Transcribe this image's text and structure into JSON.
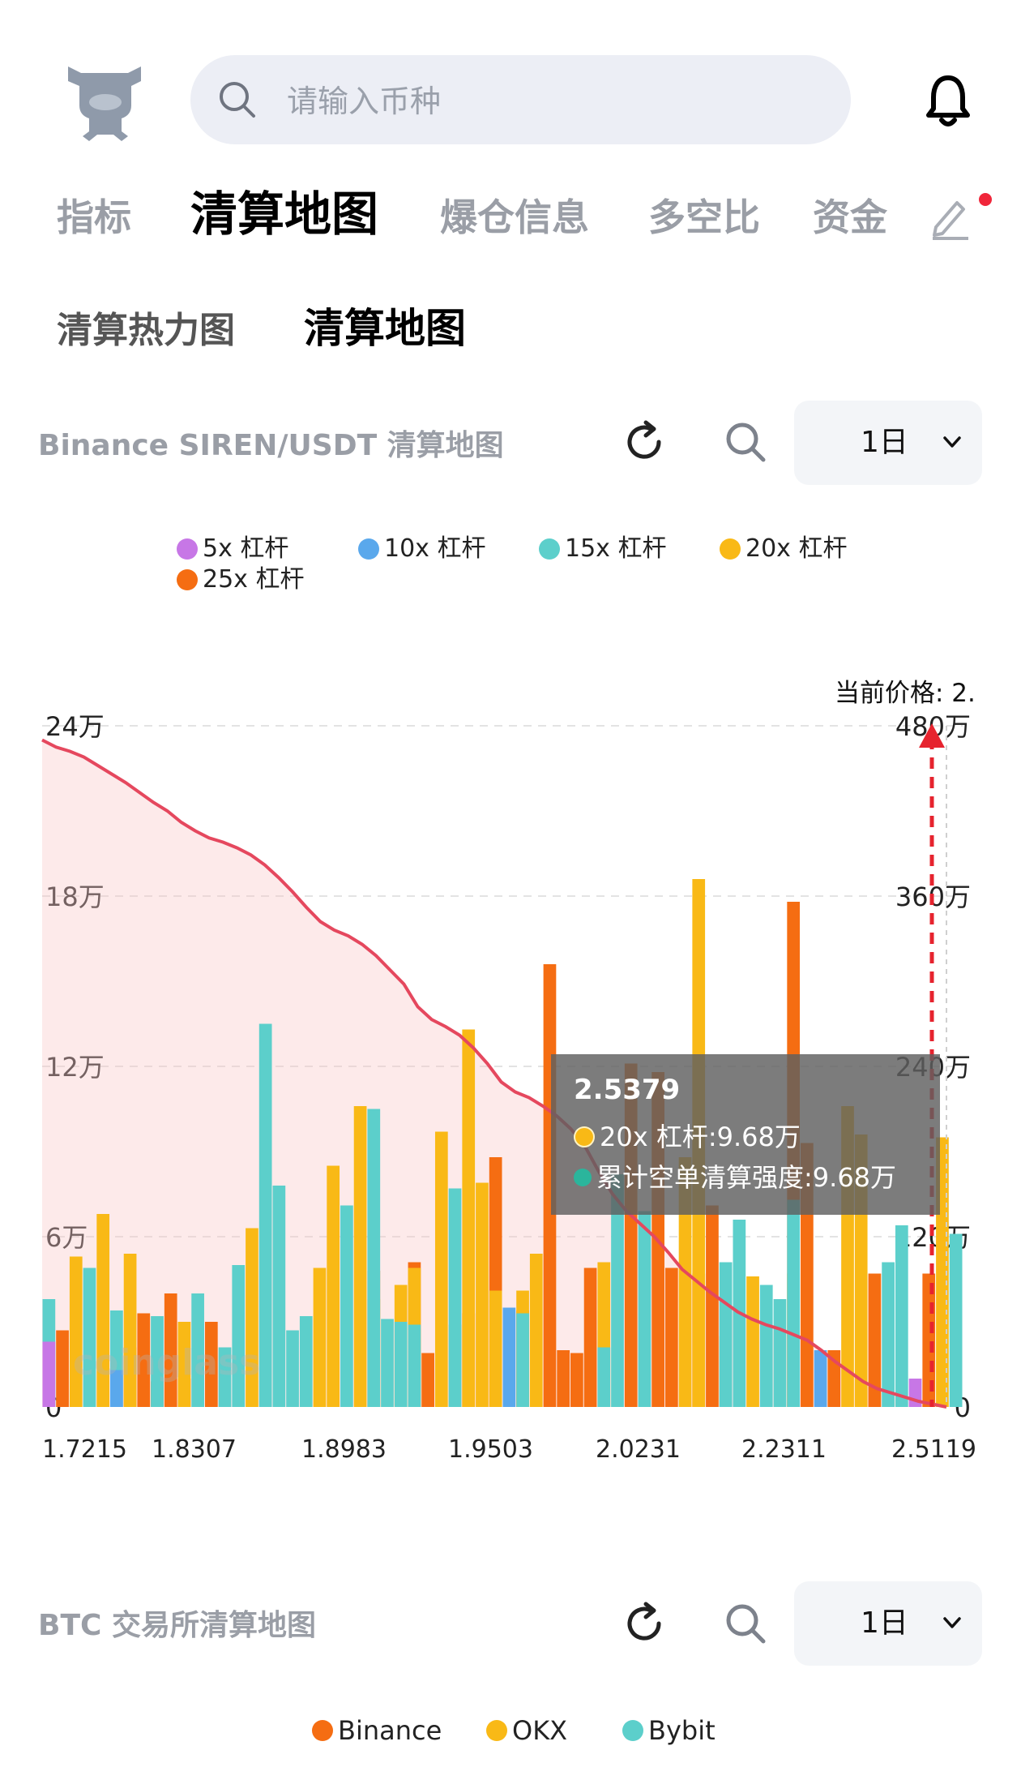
{
  "header": {
    "search_placeholder": "请输入币种"
  },
  "main_tabs": [
    {
      "label": "指标",
      "active": false
    },
    {
      "label": "清算地图",
      "active": true
    },
    {
      "label": "爆仓信息",
      "active": false
    },
    {
      "label": "多空比",
      "active": false
    },
    {
      "label": "资金",
      "active": false
    }
  ],
  "sub_tabs": [
    {
      "label": "清算热力图",
      "active": false
    },
    {
      "label": "清算地图",
      "active": true
    }
  ],
  "section1": {
    "title": "Binance SIREN/USDT 清算地图",
    "period": "1日"
  },
  "section2": {
    "title": "BTC 交易所清算地图",
    "period": "1日",
    "legend": [
      {
        "label": "Binance",
        "color": "#f56d12"
      },
      {
        "label": "OKX",
        "color": "#f9b916"
      },
      {
        "label": "Bybit",
        "color": "#5ccfcb"
      }
    ]
  },
  "watermark": "coinglass",
  "chart_data": {
    "type": "bar",
    "legend": [
      {
        "label": "5x 杠杆",
        "color": "#c777e6"
      },
      {
        "label": "10x 杠杆",
        "color": "#5aa8ec"
      },
      {
        "label": "15x 杠杆",
        "color": "#5ccfcb"
      },
      {
        "label": "20x 杠杆",
        "color": "#f9b916"
      },
      {
        "label": "25x 杠杆",
        "color": "#f56d12"
      }
    ],
    "x_ticks": [
      "1.7215",
      "1.8307",
      "1.8983",
      "1.9503",
      "2.0231",
      "2.2311",
      "2.5119"
    ],
    "y_left_ticks": [
      "0",
      "6万",
      "12万",
      "18万",
      "24万"
    ],
    "y_right_ticks": [
      "0",
      "120万",
      "240万",
      "360万",
      "480万"
    ],
    "y_left_max": 240000,
    "y_right_max": 4800000,
    "current_price_label": "当前价格: 2.",
    "bars_wan": [
      [
        2.3,
        0,
        3.8,
        0,
        0
      ],
      [
        0,
        0,
        0,
        0,
        2.7
      ],
      [
        0,
        0,
        0,
        5.3,
        0
      ],
      [
        0,
        0,
        4.9,
        0,
        0
      ],
      [
        0,
        0,
        0,
        6.8,
        0
      ],
      [
        0,
        1.3,
        3.4,
        0,
        0
      ],
      [
        0,
        0,
        0,
        5.4,
        2.1
      ],
      [
        0,
        0,
        0,
        0,
        3.3
      ],
      [
        0,
        0,
        3.2,
        0,
        0.9
      ],
      [
        0,
        0,
        0,
        0,
        4.0
      ],
      [
        0,
        0,
        0,
        3.0,
        1.0
      ],
      [
        0,
        0,
        4.0,
        0,
        0
      ],
      [
        0,
        0,
        0,
        0,
        3.0
      ],
      [
        0,
        0,
        2.1,
        0,
        0
      ],
      [
        0,
        0,
        5.0,
        0,
        0
      ],
      [
        0,
        0,
        0,
        6.3,
        0
      ],
      [
        0,
        0,
        13.5,
        0,
        0
      ],
      [
        0,
        0,
        7.8,
        0,
        0
      ],
      [
        0,
        0,
        2.7,
        0,
        0
      ],
      [
        0,
        0,
        3.2,
        0,
        0
      ],
      [
        0,
        0,
        0,
        4.9,
        0
      ],
      [
        0,
        0,
        0,
        8.5,
        0
      ],
      [
        0,
        0,
        7.1,
        0,
        0
      ],
      [
        0,
        0,
        0,
        10.6,
        0
      ],
      [
        0,
        0,
        10.5,
        3.8,
        4.8
      ],
      [
        0,
        0,
        3.1,
        0,
        0
      ],
      [
        0,
        0,
        3.0,
        4.3,
        0
      ],
      [
        0,
        0,
        2.9,
        4.9,
        5.1
      ],
      [
        0,
        0,
        0,
        0,
        1.9
      ],
      [
        0,
        0,
        0,
        9.7,
        0
      ],
      [
        0,
        0,
        7.7,
        2.9,
        0
      ],
      [
        0,
        0,
        0,
        13.3,
        3.3
      ],
      [
        0,
        0,
        0,
        7.9,
        0
      ],
      [
        0,
        0,
        0,
        4.1,
        8.8
      ],
      [
        0,
        3.5,
        0,
        0,
        0
      ],
      [
        0,
        0,
        3.3,
        4.1,
        3.4
      ],
      [
        0,
        0,
        0,
        5.4,
        0
      ],
      [
        0,
        0,
        0,
        0,
        15.6
      ],
      [
        0,
        0,
        0,
        0,
        2.0
      ],
      [
        0,
        0,
        0,
        0,
        1.9
      ],
      [
        0,
        0,
        0,
        0,
        4.9
      ],
      [
        0,
        0,
        2.1,
        5.1,
        0
      ],
      [
        0,
        0,
        8.2,
        0,
        0
      ],
      [
        0,
        0,
        0,
        0,
        12.1
      ],
      [
        0,
        0,
        6.9,
        0,
        0
      ],
      [
        0,
        0,
        0,
        0,
        11.8
      ],
      [
        0,
        0,
        0,
        0,
        4.9
      ],
      [
        0,
        0,
        0,
        8.8,
        0
      ],
      [
        0,
        0,
        0,
        18.6,
        4.7
      ],
      [
        0,
        0,
        0,
        0,
        7.1
      ],
      [
        0,
        0,
        5.1,
        2.5,
        0
      ],
      [
        0,
        0,
        6.6,
        0,
        0
      ],
      [
        0,
        0,
        0,
        4.6,
        0
      ],
      [
        0,
        0,
        4.3,
        0,
        0
      ],
      [
        0,
        0,
        3.8,
        0,
        0
      ],
      [
        0,
        0,
        7.3,
        4.7,
        17.8
      ],
      [
        0,
        0,
        0,
        0,
        9.3
      ],
      [
        0,
        2.0,
        0,
        0,
        0
      ],
      [
        0,
        0,
        0,
        0,
        2.0
      ],
      [
        0,
        0,
        0,
        10.6,
        0
      ],
      [
        0,
        0,
        0,
        9.6,
        0
      ],
      [
        0,
        0,
        0,
        0,
        4.7
      ],
      [
        0,
        0,
        5.1,
        0,
        0
      ],
      [
        0,
        0,
        6.4,
        0,
        0
      ],
      [
        1.0,
        0,
        0,
        0,
        0
      ],
      [
        0,
        0,
        0,
        0,
        4.7
      ],
      [
        0,
        0,
        0,
        9.5,
        0
      ],
      [
        0,
        0,
        6.1,
        0,
        0
      ]
    ],
    "cumulative_curve_wan": [
      470,
      465,
      462,
      458,
      452,
      446,
      440,
      433,
      426,
      420,
      412,
      406,
      401,
      398,
      394,
      389,
      382,
      373,
      363,
      352,
      342,
      336,
      332,
      326,
      318,
      308,
      298,
      282,
      273,
      268,
      262,
      253,
      242,
      229,
      222,
      218,
      212,
      205,
      196,
      184,
      166,
      150,
      138,
      129,
      120,
      109,
      97,
      89,
      81,
      74,
      67,
      62,
      58,
      55,
      51,
      47,
      40,
      32,
      25,
      18,
      13,
      10,
      7,
      4,
      2,
      0
    ],
    "tooltip": {
      "price": "2.5379",
      "row1": "20x 杠杆:9.68万",
      "row1_color": "#f9b916",
      "row2": "累计空单清算强度:9.68万",
      "row2_color": "#2bb59c"
    }
  }
}
